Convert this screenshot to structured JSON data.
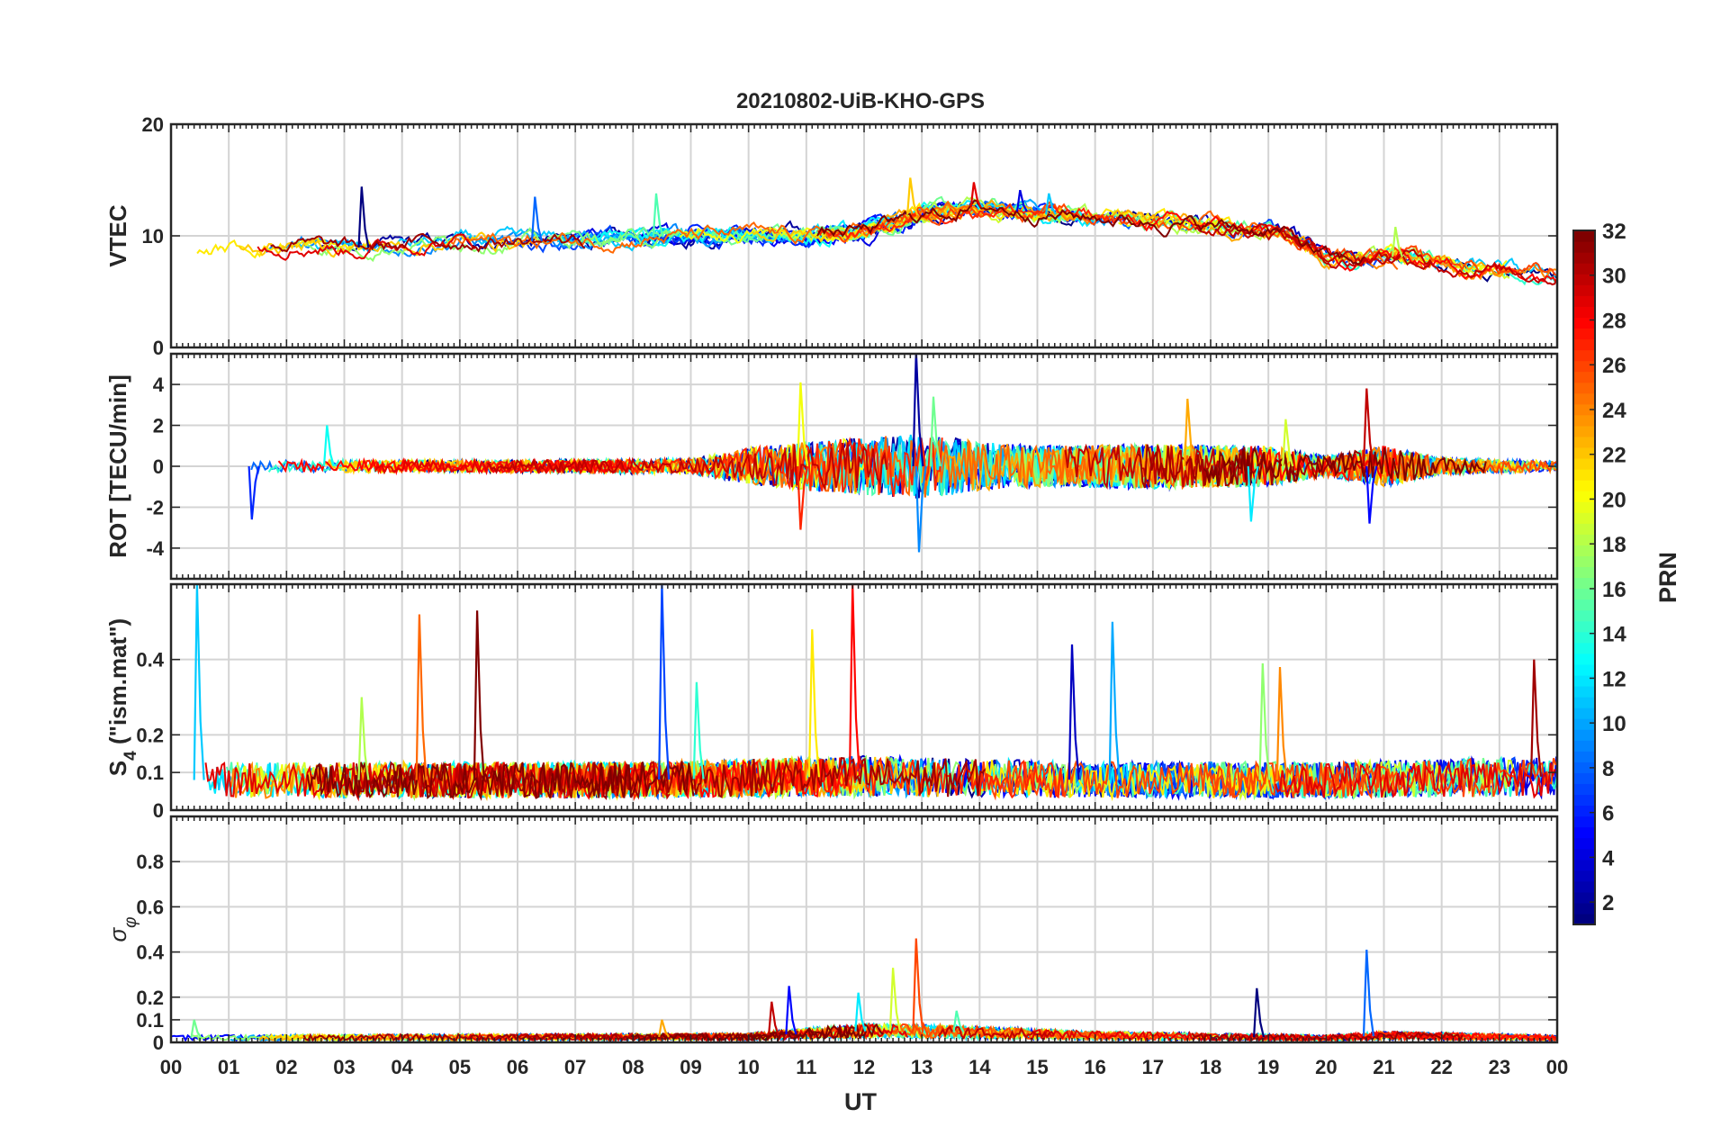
{
  "chart_data": {
    "type": "line",
    "title": "20210802-UiB-KHO-GPS",
    "xlabel": "UT",
    "x_ticks": [
      "00",
      "01",
      "02",
      "03",
      "04",
      "05",
      "06",
      "07",
      "08",
      "09",
      "10",
      "11",
      "12",
      "13",
      "14",
      "15",
      "16",
      "17",
      "18",
      "19",
      "20",
      "21",
      "22",
      "23",
      "00"
    ],
    "xlim": [
      0,
      24
    ],
    "grid": true,
    "colorbar": {
      "label": "PRN",
      "range": [
        1,
        32
      ],
      "ticks": [
        "2",
        "4",
        "6",
        "8",
        "10",
        "12",
        "14",
        "16",
        "18",
        "20",
        "22",
        "24",
        "26",
        "28",
        "30",
        "32"
      ],
      "colormap": "jet"
    },
    "panels": [
      {
        "id": "vtec",
        "ylabel": "VTEC",
        "ylim": [
          0,
          20
        ],
        "y_ticks": [
          0,
          10,
          20
        ],
        "y_tick_labels": [
          "0",
          "10",
          "20"
        ],
        "envelope": [
          [
            0,
            8.6
          ],
          [
            1,
            9.0
          ],
          [
            2,
            9.2
          ],
          [
            3,
            8.8
          ],
          [
            4,
            9.3
          ],
          [
            5,
            9.6
          ],
          [
            6,
            9.5
          ],
          [
            7,
            9.6
          ],
          [
            8,
            9.8
          ],
          [
            9,
            10.0
          ],
          [
            10,
            10.2
          ],
          [
            11,
            10.0
          ],
          [
            12,
            10.6
          ],
          [
            13,
            12.2
          ],
          [
            14,
            12.6
          ],
          [
            15,
            12.0
          ],
          [
            16,
            11.6
          ],
          [
            17,
            11.2
          ],
          [
            18,
            10.8
          ],
          [
            19,
            10.5
          ],
          [
            20,
            7.4
          ],
          [
            21,
            8.3
          ],
          [
            22,
            7.4
          ],
          [
            23,
            6.8
          ],
          [
            24,
            6.4
          ]
        ],
        "spikes": [
          [
            3.3,
            14.4
          ],
          [
            6.3,
            13.5
          ],
          [
            8.4,
            13.8
          ],
          [
            12.8,
            15.2
          ],
          [
            13.9,
            14.8
          ],
          [
            14.7,
            14.1
          ],
          [
            15.2,
            13.8
          ],
          [
            21.2,
            10.8
          ]
        ],
        "noise": 1.0
      },
      {
        "id": "rot",
        "ylabel": "ROT [TECU/min]",
        "ylim": [
          -5.5,
          5.5
        ],
        "y_ticks": [
          -4,
          -2,
          0,
          2,
          4
        ],
        "y_tick_labels": [
          "-4",
          "-2",
          "0",
          "2",
          "4"
        ],
        "envelope": [
          [
            0,
            0.25
          ],
          [
            3,
            0.3
          ],
          [
            6,
            0.3
          ],
          [
            9,
            0.35
          ],
          [
            10,
            0.9
          ],
          [
            11,
            1.2
          ],
          [
            12,
            1.4
          ],
          [
            13,
            1.6
          ],
          [
            14,
            1.2
          ],
          [
            15,
            1.0
          ],
          [
            17,
            1.1
          ],
          [
            19,
            1.0
          ],
          [
            20,
            0.5
          ],
          [
            21,
            1.0
          ],
          [
            22,
            0.4
          ],
          [
            24,
            0.25
          ]
        ],
        "spikes": [
          [
            1.4,
            -2.6
          ],
          [
            2.7,
            2.0
          ],
          [
            10.9,
            4.1
          ],
          [
            10.9,
            -3.1
          ],
          [
            12.9,
            5.6
          ],
          [
            12.95,
            -4.2
          ],
          [
            13.2,
            3.4
          ],
          [
            17.6,
            3.3
          ],
          [
            20.7,
            3.8
          ],
          [
            20.75,
            -2.8
          ],
          [
            18.7,
            -2.7
          ],
          [
            19.3,
            2.3
          ]
        ],
        "noise": 1.0
      },
      {
        "id": "s4",
        "ylabel_main": "S",
        "ylabel_sub": "4",
        "ylabel_rest": " (\"ism.mat\")",
        "ylim": [
          0,
          0.6
        ],
        "y_ticks": [
          0,
          0.1,
          0.2,
          0.4
        ],
        "y_tick_labels": [
          "0",
          "0.1",
          "0.2",
          "0.4"
        ],
        "envelope": [
          [
            0,
            0.08
          ],
          [
            4,
            0.08
          ],
          [
            8,
            0.08
          ],
          [
            12,
            0.09
          ],
          [
            16,
            0.08
          ],
          [
            20,
            0.08
          ],
          [
            24,
            0.09
          ]
        ],
        "spikes": [
          [
            0.45,
            0.6
          ],
          [
            3.3,
            0.3
          ],
          [
            4.3,
            0.52
          ],
          [
            5.3,
            0.53
          ],
          [
            8.5,
            0.6
          ],
          [
            9.1,
            0.34
          ],
          [
            11.1,
            0.48
          ],
          [
            11.8,
            0.6
          ],
          [
            15.6,
            0.44
          ],
          [
            16.3,
            0.5
          ],
          [
            18.9,
            0.39
          ],
          [
            19.2,
            0.38
          ],
          [
            23.6,
            0.4
          ]
        ],
        "noise": 1.0
      },
      {
        "id": "sigma",
        "ylabel_main": "σ",
        "ylabel_sub": "φ",
        "ylim": [
          0,
          1
        ],
        "y_ticks": [
          0,
          0.1,
          0.2,
          0.4,
          0.6,
          0.8
        ],
        "y_tick_labels": [
          "0",
          "0.1",
          "0.2",
          "0.4",
          "0.6",
          "0.8"
        ],
        "envelope": [
          [
            0,
            0.02
          ],
          [
            10,
            0.025
          ],
          [
            11,
            0.04
          ],
          [
            12,
            0.05
          ],
          [
            13,
            0.05
          ],
          [
            16,
            0.03
          ],
          [
            20,
            0.02
          ],
          [
            21,
            0.03
          ],
          [
            24,
            0.02
          ]
        ],
        "spikes": [
          [
            0.4,
            0.1
          ],
          [
            8.5,
            0.1
          ],
          [
            10.4,
            0.18
          ],
          [
            10.7,
            0.25
          ],
          [
            11.9,
            0.22
          ],
          [
            12.5,
            0.33
          ],
          [
            12.9,
            0.46
          ],
          [
            18.8,
            0.24
          ],
          [
            20.7,
            0.41
          ],
          [
            13.6,
            0.14
          ]
        ],
        "noise": 1.0
      }
    ]
  }
}
